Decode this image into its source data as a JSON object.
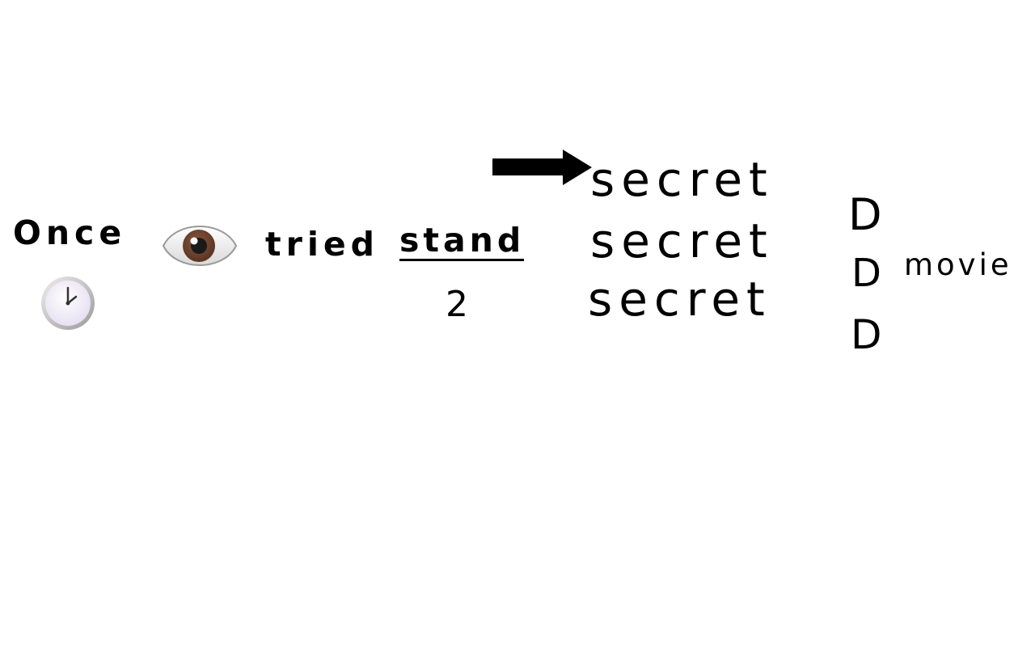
{
  "words": {
    "once": "Once",
    "tried": "tried",
    "stand": "stand",
    "two": "2",
    "secret_1": "secret",
    "secret_2": "secret",
    "secret_3": "secret",
    "d_1": "D",
    "d_2": "D",
    "d_3": "D",
    "movie": "movie"
  },
  "icons": {
    "eye": "eye-icon",
    "clock": "clock-icon",
    "arrow": "right-arrow-icon"
  },
  "colors": {
    "text": "#000000",
    "background": "#ffffff",
    "iris": "#6b3f2a"
  }
}
